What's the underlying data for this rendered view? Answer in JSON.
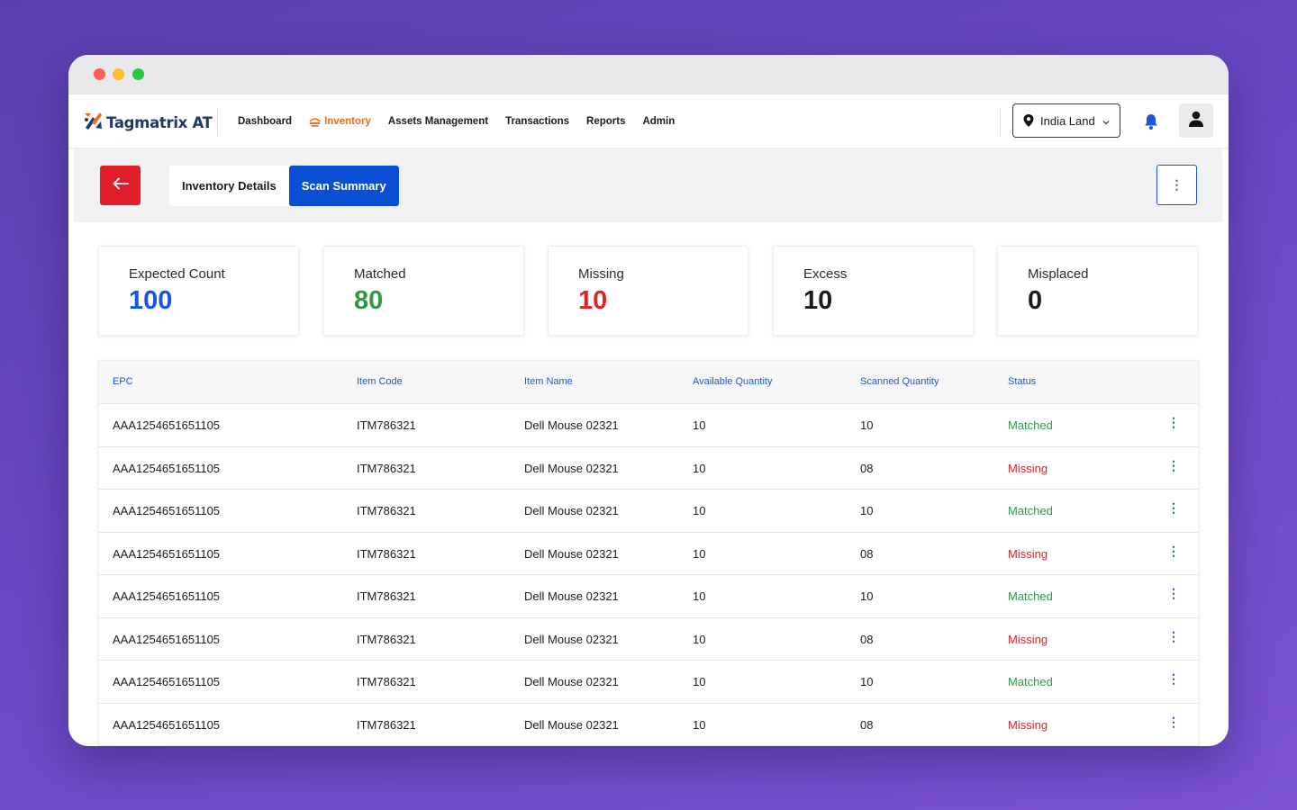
{
  "window": {
    "controls": [
      "close",
      "minimize",
      "maximize"
    ]
  },
  "brand": {
    "name": "Tagmatrix AT",
    "logo_icon": "tagmatrix-logo-icon"
  },
  "nav": {
    "items": [
      {
        "label": "Dashboard",
        "active": false
      },
      {
        "label": "Inventory",
        "active": true,
        "icon": "inventory-icon"
      },
      {
        "label": "Assets Management",
        "active": false
      },
      {
        "label": "Transactions",
        "active": false
      },
      {
        "label": "Reports",
        "active": false
      },
      {
        "label": "Admin",
        "active": false
      }
    ],
    "location": {
      "value": "India Land",
      "icon": "location-pin-icon"
    },
    "notifications_icon": "bell-icon",
    "profile_icon": "user-icon"
  },
  "toolbar": {
    "back_icon": "arrow-left-icon",
    "tabs": [
      {
        "label": "Inventory Details",
        "active": false
      },
      {
        "label": "Scan Summary",
        "active": true
      }
    ],
    "more_icon": "vertical-dots-icon"
  },
  "summary": [
    {
      "label": "Expected Count",
      "value": "100",
      "color": "#1157e0"
    },
    {
      "label": "Matched",
      "value": "80",
      "color": "#2f9a45"
    },
    {
      "label": "Missing",
      "value": "10",
      "color": "#e02424"
    },
    {
      "label": "Excess",
      "value": "10",
      "color": "#1b1b1f"
    },
    {
      "label": "Misplaced",
      "value": "0",
      "color": "#1b1b1f"
    }
  ],
  "table": {
    "headers": [
      "EPC",
      "Item Code",
      "Item Name",
      "Available Quantity",
      "Scanned Quantity",
      "Status"
    ],
    "status_colors": {
      "Matched": "#2f9a45",
      "Missing": "#d9232d"
    },
    "rows": [
      [
        "AAA1254651651105",
        "ITM786321",
        "Dell Mouse 02321",
        "10",
        "10",
        "Matched"
      ],
      [
        "AAA1254651651105",
        "ITM786321",
        "Dell Mouse 02321",
        "10",
        "08",
        "Missing"
      ],
      [
        "AAA1254651651105",
        "ITM786321",
        "Dell Mouse 02321",
        "10",
        "10",
        "Matched"
      ],
      [
        "AAA1254651651105",
        "ITM786321",
        "Dell Mouse 02321",
        "10",
        "08",
        "Missing"
      ],
      [
        "AAA1254651651105",
        "ITM786321",
        "Dell Mouse 02321",
        "10",
        "10",
        "Matched"
      ],
      [
        "AAA1254651651105",
        "ITM786321",
        "Dell Mouse 02321",
        "10",
        "08",
        "Missing"
      ],
      [
        "AAA1254651651105",
        "ITM786321",
        "Dell Mouse 02321",
        "10",
        "10",
        "Matched"
      ],
      [
        "AAA1254651651105",
        "ITM786321",
        "Dell Mouse 02321",
        "10",
        "08",
        "Missing"
      ]
    ],
    "row_menu_icon": "vertical-dots-icon"
  }
}
